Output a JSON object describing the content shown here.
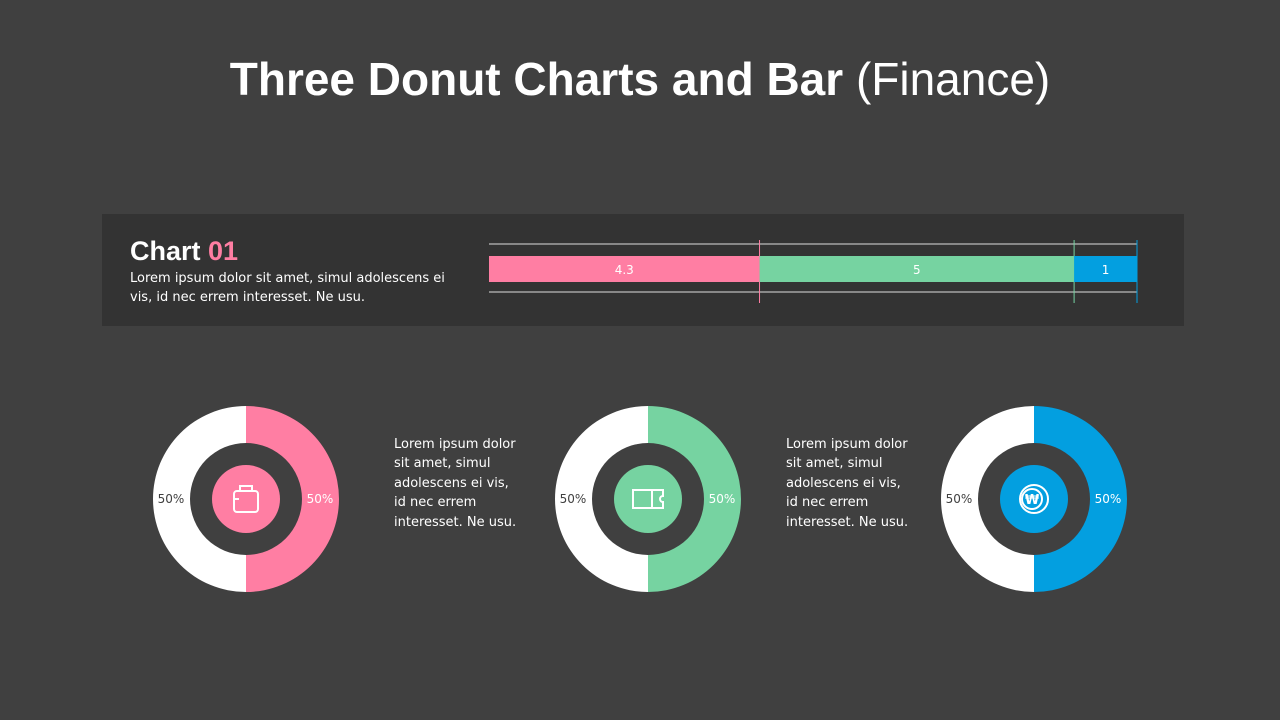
{
  "title": {
    "bold": "Three Donut Charts and Bar",
    "light": "(Finance)"
  },
  "panel": {
    "heading": "Chart",
    "heading_num": "01",
    "description": "Lorem ipsum dolor sit amet, simul adolescens ei vis, id nec errem  interesset. Ne usu."
  },
  "descriptions": [
    "Lorem ipsum dolor sit amet, simul adolescens ei vis, id nec errem interesset. Ne usu.",
    "Lorem ipsum dolor sit amet, simul adolescens ei vis, id nec errem interesset. Ne usu."
  ],
  "chart_data": [
    {
      "type": "bar",
      "orientation": "horizontal",
      "stacked": true,
      "series": [
        {
          "values": [
            4.3
          ],
          "color": "#ff7ea3"
        },
        {
          "values": [
            5
          ],
          "color": "#76d3a1"
        },
        {
          "values": [
            1
          ],
          "color": "#039fe0"
        }
      ],
      "data_labels": [
        "4.3",
        "5",
        "1"
      ]
    },
    {
      "type": "pie",
      "donut": true,
      "values": [
        50,
        50
      ],
      "labels": [
        "50%",
        "50%"
      ],
      "colors": [
        "#ff7ea3",
        "#ffffff"
      ],
      "icon": "shopping-bag-icon"
    },
    {
      "type": "pie",
      "donut": true,
      "values": [
        50,
        50
      ],
      "labels": [
        "50%",
        "50%"
      ],
      "colors": [
        "#76d3a1",
        "#ffffff"
      ],
      "icon": "ticket-icon"
    },
    {
      "type": "pie",
      "donut": true,
      "values": [
        50,
        50
      ],
      "labels": [
        "50%",
        "50%"
      ],
      "colors": [
        "#039fe0",
        "#ffffff"
      ],
      "icon": "won-coin-icon"
    }
  ]
}
